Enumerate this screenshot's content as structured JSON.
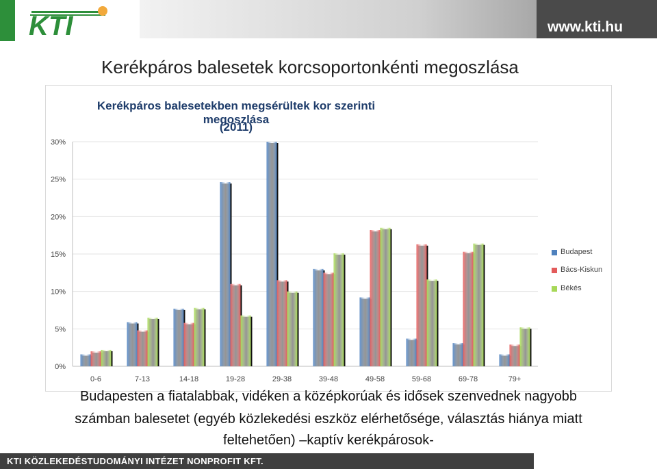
{
  "header": {
    "logo_text": "KTI",
    "url": "www.kti.hu"
  },
  "slide_title": "Kerékpáros balesetek korcsoportonkénti megoszlása",
  "chart_data": {
    "type": "bar",
    "title_lines": [
      "Kerékpáros balesetekben megsérültek kor szerinti megoszlása",
      "(2011)"
    ],
    "categories": [
      "0-6",
      "7-13",
      "14-18",
      "19-28",
      "29-38",
      "39-48",
      "49-58",
      "59-68",
      "69-78",
      "79+"
    ],
    "series": [
      {
        "name": "Budapest",
        "color": "#4f81bd",
        "values": [
          1.6,
          5.9,
          7.7,
          24.6,
          30.0,
          13.0,
          9.2,
          3.7,
          3.1,
          1.6
        ]
      },
      {
        "name": "Bács-Kiskun",
        "color": "#e35b5b",
        "values": [
          2.0,
          4.8,
          5.8,
          11.0,
          11.5,
          12.5,
          18.2,
          16.3,
          15.3,
          2.9
        ]
      },
      {
        "name": "Békés",
        "color": "#a7d858",
        "values": [
          2.2,
          6.5,
          7.8,
          6.8,
          10.0,
          15.1,
          18.5,
          11.6,
          16.4,
          5.2
        ]
      }
    ],
    "y_ticks": [
      "0%",
      "5%",
      "10%",
      "15%",
      "20%",
      "25%",
      "30%"
    ],
    "ylim": [
      0,
      30
    ],
    "legend_position": "right"
  },
  "caption_lines": [
    "Budapesten a fiatalabbak, vidéken a középkorúak és idősek szenvednek nagyobb",
    "számban balesetet (egyéb közlekedési eszköz elérhetősége, választás hiánya miatt",
    "feltehetően) –kaptív kerékpárosok-"
  ],
  "footer": "KTI KÖZLEKEDÉSTUDOMÁNYI INTÉZET NONPROFIT KFT."
}
